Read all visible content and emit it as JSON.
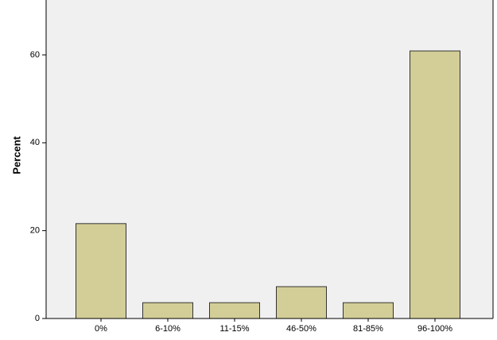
{
  "chart_data": {
    "type": "bar",
    "y_label": "Percent",
    "categories": [
      "0%",
      "6-10%",
      "11-15%",
      "46-50%",
      "81-85%",
      "96-100%"
    ],
    "values": [
      21.6,
      3.6,
      3.6,
      7.25,
      3.6,
      60.9
    ],
    "color": "#d3ce97",
    "ylim": [
      0,
      72.5
    ],
    "yticks": [
      0,
      20,
      40,
      60
    ],
    "grid": false
  }
}
